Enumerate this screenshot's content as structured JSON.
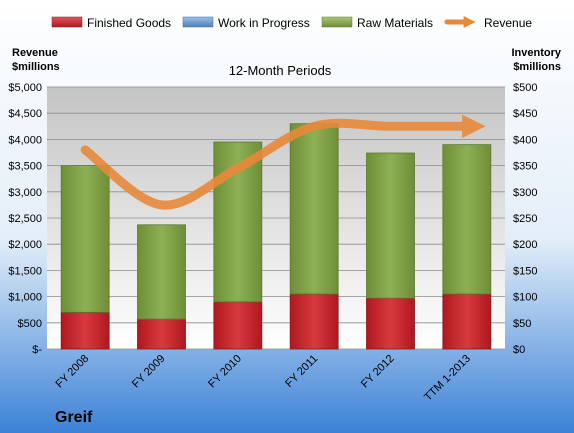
{
  "chart_data": {
    "type": "bar",
    "subtitle": "12-Month Periods",
    "company": "Greif",
    "categories": [
      "FY 2008",
      "FY 2009",
      "FY 2010",
      "FY 2011",
      "FY 2012",
      "TTM 1-2013"
    ],
    "left_axis": {
      "title_line1": "Revenue",
      "title_line2": "$millions",
      "range": [
        0,
        5000
      ],
      "ticks": [
        "$-",
        "$500",
        "$1,000",
        "$1,500",
        "$2,000",
        "$2,500",
        "$3,000",
        "$3,500",
        "$4,000",
        "$4,500",
        "$5,000"
      ]
    },
    "right_axis": {
      "title_line1": "Inventory",
      "title_line2": "$millions",
      "range": [
        0,
        500
      ],
      "ticks": [
        "$0",
        "$50",
        "$100",
        "$150",
        "$200",
        "$250",
        "$300",
        "$350",
        "$400",
        "$450",
        "$500"
      ]
    },
    "series": [
      {
        "name": "Finished Goods",
        "kind": "bar",
        "axis": "right",
        "color": "#C0282D",
        "values": [
          70,
          57,
          90,
          105,
          97,
          105
        ]
      },
      {
        "name": "Work in Progress",
        "kind": "bar",
        "axis": "right",
        "color": "#4F81BD",
        "values": [
          0,
          0,
          0,
          0,
          0,
          0
        ]
      },
      {
        "name": "Raw Materials",
        "kind": "bar",
        "axis": "right",
        "color": "#7F9F45",
        "values": [
          280,
          180,
          305,
          325,
          277,
          285
        ]
      },
      {
        "name": "Revenue",
        "kind": "line",
        "axis": "left",
        "color": "#E8893A",
        "values": [
          3800,
          2750,
          3450,
          4250,
          4250,
          4250
        ]
      }
    ],
    "legend_position": "top",
    "grid": true
  }
}
